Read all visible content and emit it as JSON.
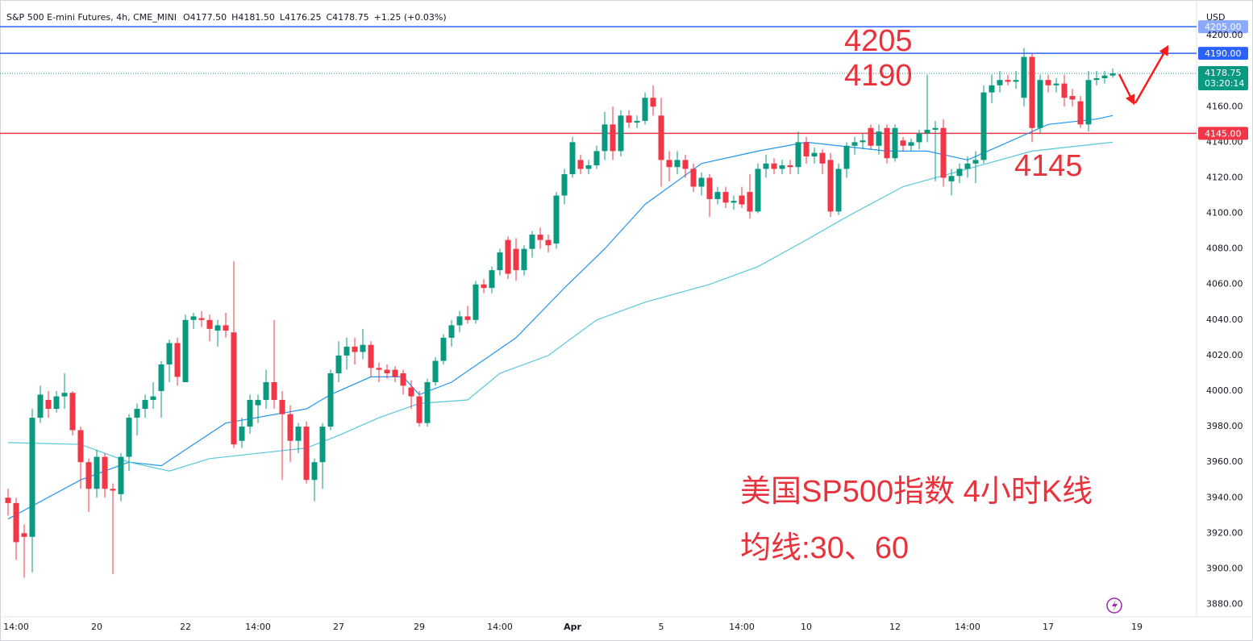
{
  "chart_data": {
    "type": "candlestick",
    "title": "S&P 500 E-mini Futures, 4h, CME_MINI",
    "header_values": [
      "O4177.50",
      "H4181.50",
      "L4176.25",
      "C4178.75",
      "+1.25 (+0.03%)"
    ],
    "currency": "USD",
    "up_color": "#089981",
    "down_color": "#f23645",
    "open": [
      3940,
      3937,
      3920,
      3918,
      3985,
      3995,
      3990,
      3997,
      3999,
      3978,
      3960,
      3945,
      3963,
      3945,
      3942,
      3963,
      3985,
      3990,
      3995,
      4000,
      4015,
      4027,
      4005,
      4040,
      4041,
      4040,
      4034,
      4037,
      4033,
      3972,
      3980,
      3992,
      3995,
      4005,
      3995,
      3987,
      3972,
      3980,
      3950,
      3960,
      3980,
      4010,
      4020,
      4025,
      4022,
      4026,
      4013,
      4012,
      4012,
      4010,
      4002,
      3997,
      3982,
      4005,
      4017,
      4030,
      4037,
      4042,
      4040,
      4060,
      4058,
      4068,
      4085,
      4080,
      4068,
      4080,
      4088,
      4085,
      4083,
      4110,
      4122,
      4130,
      4125,
      4127,
      4135,
      4150,
      4135,
      4155,
      4151,
      4152,
      4165,
      4155,
      4130,
      4126,
      4130,
      4125,
      4115,
      4120,
      4108,
      4112,
      4106,
      4110,
      4112,
      4101,
      4125,
      4128,
      4125,
      4127,
      4126,
      4140,
      4132,
      4134,
      4130,
      4101,
      4125,
      4138,
      4140,
      4148,
      4138,
      4148,
      4131,
      4141,
      4138,
      4140,
      4145,
      4147,
      4148,
      4118,
      4121,
      4125,
      4128,
      4130,
      4168,
      4172,
      4175,
      4174,
      4165,
      4188,
      4148,
      4175,
      4172,
      4173,
      4166,
      4163,
      4150,
      4175,
      4176,
      4177.5
    ],
    "high": [
      3945,
      3940,
      3925,
      3990,
      4003,
      4000,
      4000,
      4010,
      4000,
      3980,
      3962,
      3967,
      3965,
      3948,
      3965,
      3987,
      3993,
      3998,
      4005,
      4017,
      4029,
      4030,
      4043,
      4044,
      4045,
      4043,
      4040,
      4044,
      4073,
      3985,
      3998,
      3998,
      4012,
      4040,
      4000,
      3992,
      3982,
      3983,
      3962,
      3982,
      4012,
      4028,
      4030,
      4030,
      4035,
      4028,
      4016,
      4015,
      4014,
      4012,
      4006,
      4000,
      4007,
      4019,
      4032,
      4040,
      4045,
      4048,
      4062,
      4063,
      4070,
      4080,
      4087,
      4086,
      4082,
      4090,
      4092,
      4088,
      4112,
      4125,
      4143,
      4133,
      4130,
      4138,
      4157,
      4160,
      4158,
      4158,
      4155,
      4168,
      4172,
      4165,
      4135,
      4135,
      4133,
      4128,
      4123,
      4122,
      4115,
      4115,
      4110,
      4115,
      4122,
      4128,
      4133,
      4131,
      4130,
      4130,
      4146,
      4143,
      4137,
      4136,
      4134,
      4128,
      4140,
      4143,
      4145,
      4150,
      4150,
      4150,
      4150,
      4143,
      4142,
      4147,
      4178,
      4152,
      4153,
      4125,
      4128,
      4132,
      4135,
      4172,
      4178,
      4180,
      4178,
      4180,
      4193,
      4190,
      4178,
      4178,
      4176,
      4178,
      4170,
      4166,
      4180,
      4180,
      4180,
      4181.5
    ],
    "low": [
      3930,
      3905,
      3895,
      3898,
      3982,
      3985,
      3988,
      3990,
      3975,
      3945,
      3932,
      3940,
      3940,
      3897,
      3938,
      3955,
      3975,
      3985,
      3990,
      3985,
      4005,
      4003,
      4005,
      4035,
      4036,
      4028,
      4025,
      4030,
      3968,
      3968,
      3976,
      3982,
      3990,
      3990,
      3950,
      3960,
      3965,
      3948,
      3938,
      3945,
      3978,
      4005,
      4012,
      4015,
      4018,
      4008,
      4005,
      4007,
      4005,
      3998,
      3990,
      3980,
      3980,
      4003,
      4015,
      4025,
      4033,
      4038,
      4038,
      4055,
      4055,
      4065,
      4063,
      4062,
      4065,
      4075,
      4080,
      4078,
      4080,
      4105,
      4120,
      4122,
      4122,
      4125,
      4130,
      4130,
      4132,
      4148,
      4148,
      4150,
      4155,
      4115,
      4118,
      4122,
      4120,
      4112,
      4110,
      4098,
      4105,
      4103,
      4102,
      4103,
      4097,
      4100,
      4120,
      4122,
      4122,
      4122,
      4122,
      4128,
      4128,
      4122,
      4098,
      4099,
      4120,
      4133,
      4136,
      4136,
      4133,
      4128,
      4129,
      4135,
      4135,
      4136,
      4140,
      4118,
      4115,
      4110,
      4117,
      4120,
      4117,
      4128,
      4162,
      4168,
      4172,
      4170,
      4160,
      4140,
      4145,
      4168,
      4168,
      4160,
      4160,
      4148,
      4146,
      4172,
      4173,
      4176.25
    ],
    "close": [
      3937,
      3915,
      3918,
      3985,
      3998,
      3990,
      3997,
      3999,
      3978,
      3960,
      3945,
      3963,
      3945,
      3944,
      3963,
      3985,
      3990,
      3995,
      3997,
      4015,
      4027,
      4008,
      4040,
      4042,
      4040,
      4035,
      4037,
      4034,
      3970,
      3980,
      3995,
      3995,
      4005,
      3995,
      3987,
      3972,
      3980,
      3950,
      3960,
      3980,
      4010,
      4020,
      4025,
      4022,
      4026,
      4013,
      4012,
      4010,
      4008,
      4003,
      3997,
      3982,
      4005,
      4017,
      4030,
      4037,
      4042,
      4040,
      4060,
      4058,
      4068,
      4078,
      4066,
      4068,
      4080,
      4088,
      4085,
      4082,
      4110,
      4122,
      4140,
      4125,
      4127,
      4135,
      4150,
      4135,
      4155,
      4151,
      4152,
      4165,
      4160,
      4130,
      4126,
      4130,
      4125,
      4115,
      4120,
      4108,
      4112,
      4106,
      4107,
      4105,
      4101,
      4125,
      4128,
      4125,
      4127,
      4126,
      4140,
      4132,
      4134,
      4128,
      4101,
      4125,
      4138,
      4140,
      4141,
      4138,
      4146,
      4131,
      4148,
      4138,
      4140,
      4145,
      4147,
      4148,
      4120,
      4121,
      4125,
      4128,
      4130,
      4168,
      4172,
      4175,
      4174,
      4175,
      4188,
      4148,
      4175,
      4172,
      4173,
      4165,
      4164,
      4150,
      4175,
      4176,
      4177.5,
      4178.75
    ],
    "moving_averages": [
      {
        "color": "#2196f3",
        "x": [
          0,
          9,
          15,
          19,
          27,
          37,
          40,
          45,
          49,
          51,
          55,
          63,
          69,
          74,
          79,
          86,
          93,
          99,
          109,
          114,
          119,
          124,
          129,
          135,
          137
        ],
        "values": [
          3928,
          3950,
          3960,
          3958,
          3982,
          3990,
          3998,
          4008,
          4008,
          3998,
          4005,
          4030,
          4058,
          4080,
          4105,
          4128,
          4135,
          4140,
          4135,
          4135,
          4130,
          4140,
          4150,
          4153,
          4155
        ]
      },
      {
        "color": "#56c8da",
        "x": [
          0,
          9,
          15,
          20,
          25,
          31,
          37,
          41,
          46,
          51,
          57,
          61,
          67,
          73,
          79,
          87,
          93,
          99,
          104,
          111,
          119,
          127,
          137
        ],
        "values": [
          3971,
          3970,
          3960,
          3955,
          3962,
          3965,
          3968,
          3975,
          3985,
          3993,
          3995,
          4010,
          4020,
          4040,
          4050,
          4060,
          4070,
          4085,
          4098,
          4115,
          4125,
          4135,
          4140
        ]
      }
    ],
    "levels": [
      {
        "value": 4205,
        "label": "4205.00",
        "color": "#2962ff"
      },
      {
        "value": 4190,
        "label": "4190.00",
        "color": "#2962ff"
      },
      {
        "value": 4145,
        "label": "4145.00",
        "color": "#f23645"
      }
    ],
    "last_price": {
      "value": 4178.75,
      "label": "4178.75",
      "countdown": "03:20:14",
      "color": "#089981"
    },
    "annotations": [
      "4205",
      "4190",
      "4145",
      "美国SP500指数 4小时K线",
      "均线:30、60"
    ],
    "ylim": [
      3873,
      4220
    ],
    "yticks": [
      {
        "value": 3880,
        "label": "3880.00"
      },
      {
        "value": 3900,
        "label": "3900.00"
      },
      {
        "value": 3920,
        "label": "3920.00"
      },
      {
        "value": 3940,
        "label": "3940.00"
      },
      {
        "value": 3960,
        "label": "3960.00"
      },
      {
        "value": 3980,
        "label": "3980.00"
      },
      {
        "value": 4000,
        "label": "4000.00"
      },
      {
        "value": 4020,
        "label": "4020.00"
      },
      {
        "value": 4040,
        "label": "4040.00"
      },
      {
        "value": 4060,
        "label": "4060.00"
      },
      {
        "value": 4080,
        "label": "4080.00"
      },
      {
        "value": 4100,
        "label": "4100.00"
      },
      {
        "value": 4120,
        "label": "4120.00"
      },
      {
        "value": 4140,
        "label": "4140.00"
      },
      {
        "value": 4160,
        "label": "4160.00"
      },
      {
        "value": 4180,
        "label": "4180.00"
      },
      {
        "value": 4200,
        "label": "4200.00"
      }
    ],
    "xlim": [
      -1,
      147.4
    ],
    "xticks": [
      {
        "value": 1,
        "label": "14:00"
      },
      {
        "value": 11,
        "label": "20"
      },
      {
        "value": 22,
        "label": "22"
      },
      {
        "value": 31,
        "label": "14:00"
      },
      {
        "value": 41,
        "label": "27"
      },
      {
        "value": 51,
        "label": "29"
      },
      {
        "value": 61,
        "label": "14:00"
      },
      {
        "value": 70,
        "label": "Apr"
      },
      {
        "value": 81,
        "label": "5"
      },
      {
        "value": 91,
        "label": "14:00"
      },
      {
        "value": 99,
        "label": "10"
      },
      {
        "value": 110,
        "label": "12"
      },
      {
        "value": 119,
        "label": "14:00"
      },
      {
        "value": 129,
        "label": "17"
      },
      {
        "value": 140,
        "label": "19"
      }
    ],
    "grid": false
  }
}
